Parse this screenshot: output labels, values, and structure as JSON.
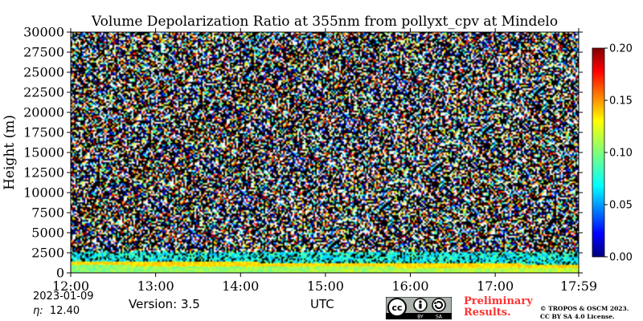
{
  "chart_data": {
    "type": "heatmap",
    "title": "Volume Depolarization Ratio at 355nm from pollyxt_cpv at Mindelo",
    "ylabel": "Height (m)",
    "xlabel": "UTC",
    "x_ticks": [
      "12:00",
      "13:00",
      "14:00",
      "15:00",
      "16:00",
      "17:00",
      "17:59"
    ],
    "x_range": [
      "12:00",
      "17:59"
    ],
    "y_ticks": [
      0,
      2500,
      5000,
      7500,
      10000,
      12500,
      15000,
      17500,
      20000,
      22500,
      25000,
      27500,
      30000
    ],
    "ylim": [
      0,
      30000
    ],
    "colorbar": {
      "ticks": [
        "0.00",
        "0.05",
        "0.10",
        "0.15",
        "0.20"
      ],
      "range": [
        0.0,
        0.2
      ],
      "colormap": "jet"
    },
    "features": {
      "aerosol_layer_top_m": 2500,
      "dense_layer_height_m": 1100,
      "above_layer": "noisy / high-variance signal (mixed colors and black)"
    }
  },
  "footer": {
    "date": "2023-01-09",
    "eta_label": "η:",
    "eta_value": "12.40",
    "version": "Version: 3.5",
    "preliminary_line1": "Preliminary",
    "preliminary_line2": "Results.",
    "copyright_line1": "© TROPOS & OSCM 2023.",
    "copyright_line2": "CC BY SA 4.0 License.",
    "license_badge": {
      "left": "cc",
      "by": "BY",
      "sa": "SA"
    }
  },
  "colors": {
    "preliminary": "#ff3333",
    "noise_background": "#000000"
  }
}
